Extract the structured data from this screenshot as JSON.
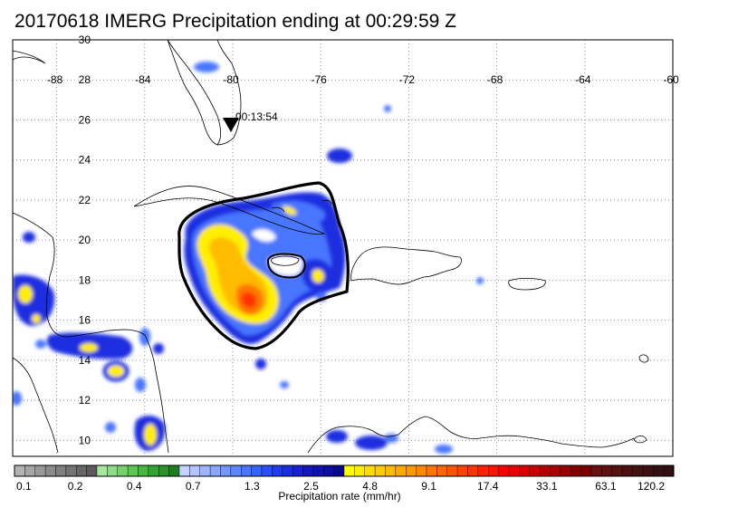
{
  "title": "20170618 IMERG Precipitation ending at 00:29:59 Z",
  "overpass_time": "00:13:54",
  "lat_labels": [
    "30",
    "28",
    "26",
    "24",
    "22",
    "20",
    "18",
    "16",
    "14",
    "12",
    "10"
  ],
  "lon_labels": [
    "-88",
    "-84",
    "-80",
    "-76",
    "-72",
    "-68",
    "-64",
    "-60"
  ],
  "colorbar": {
    "title": "Precipitation rate (mm/hr)",
    "labels": [
      "0.1",
      "0.2",
      "0.4",
      "0.7",
      "1.3",
      "2.5",
      "4.8",
      "9.1",
      "17.4",
      "33.1",
      "63.1",
      "120.2"
    ],
    "colors": [
      "#b3b3b3",
      "#a6a6a6",
      "#999999",
      "#8c8c8c",
      "#808080",
      "#737373",
      "#666666",
      "#5a5a5a",
      "#a8e6a0",
      "#8fdc86",
      "#75d16c",
      "#5cc653",
      "#44bb3c",
      "#33a532",
      "#2a9229",
      "#1f7f20",
      "#c6d2ff",
      "#b4c4ff",
      "#9fb4ff",
      "#8aa6ff",
      "#7496ff",
      "#5e86ff",
      "#4876ff",
      "#3366ff",
      "#2a4fff",
      "#1f3cf0",
      "#1a2ee0",
      "#1620d0",
      "#1414c0",
      "#1010b0",
      "#0c0ca0",
      "#080890",
      "#ffff00",
      "#ffee00",
      "#ffdd00",
      "#ffcc00",
      "#ffbb00",
      "#ffaa00",
      "#ff9900",
      "#ff8800",
      "#ff7700",
      "#ff6600",
      "#ff5500",
      "#ff4400",
      "#ff3300",
      "#ff2200",
      "#ff1100",
      "#ff0000",
      "#ee0000",
      "#dd0000",
      "#cc0000",
      "#bb0000",
      "#aa0000",
      "#990000",
      "#880000",
      "#770000",
      "#6a1010",
      "#601010",
      "#561010",
      "#4c1010",
      "#441010",
      "#3c1010",
      "#351010",
      "#2e1010"
    ]
  }
}
